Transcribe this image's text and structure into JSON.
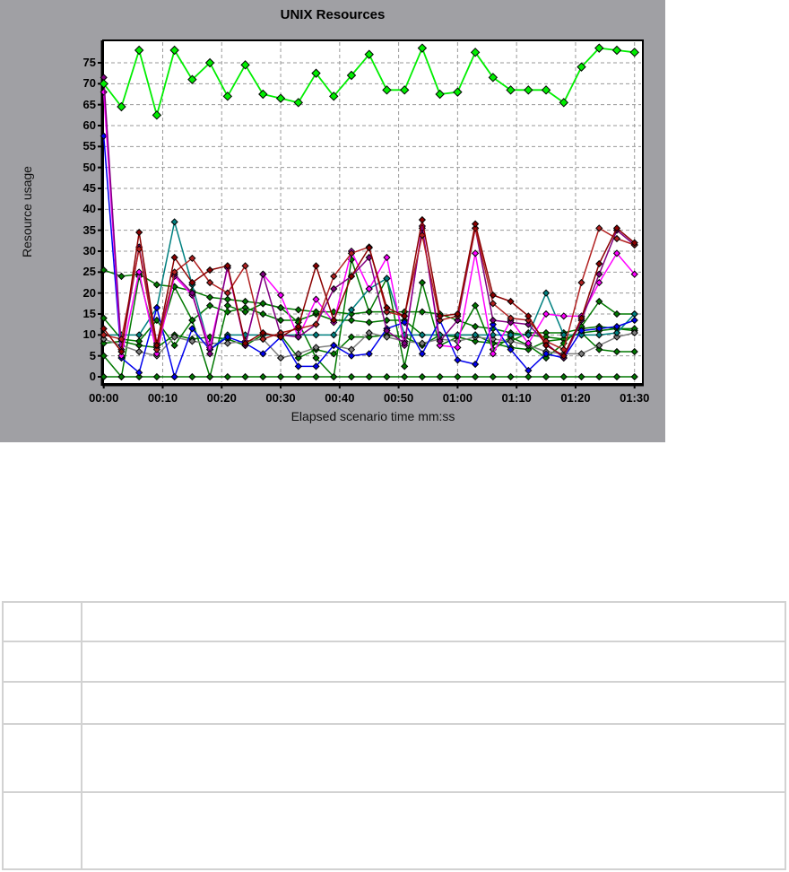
{
  "chart_data": {
    "type": "line",
    "title": "UNIX Resources",
    "xlabel": "Elapsed scenario time mm:ss",
    "ylabel": "Resource usage",
    "x_tick_labels": [
      "00:00",
      "00:10",
      "00:20",
      "00:30",
      "00:40",
      "00:50",
      "01:00",
      "01:10",
      "01:20",
      "01:30"
    ],
    "x_tick_seconds": [
      0,
      10,
      20,
      30,
      40,
      50,
      60,
      70,
      80,
      90
    ],
    "y_ticks": [
      0,
      5,
      10,
      15,
      20,
      25,
      30,
      35,
      40,
      45,
      50,
      55,
      60,
      65,
      70,
      75
    ],
    "xlim": [
      0,
      91.5
    ],
    "ylim": [
      0,
      80.4
    ],
    "grid": true,
    "grid_style": "dashed",
    "legend_position": "none",
    "marker": "diamond",
    "x_seconds": [
      0,
      3,
      6,
      9,
      12,
      15,
      18,
      21,
      24,
      27,
      30,
      33,
      36,
      39,
      42,
      45,
      48,
      51,
      54,
      57,
      60,
      63,
      66,
      69,
      72,
      75,
      78,
      81,
      84,
      87,
      90
    ],
    "series": [
      {
        "name": "series-green-zero",
        "color": "#007800",
        "marker_size": 3.4,
        "line_width": 1.5,
        "values": [
          0,
          0,
          0,
          0,
          0,
          0,
          0,
          0,
          0,
          0,
          0,
          0,
          0,
          0,
          0,
          0,
          0,
          0,
          0,
          0,
          0,
          0,
          0,
          0,
          0,
          0,
          0,
          0,
          0,
          0,
          0
        ]
      },
      {
        "name": "series-green-low",
        "color": "#007800",
        "marker_size": 3.4,
        "line_width": 1.5,
        "values": [
          8,
          8.5,
          7.5,
          7,
          10,
          9,
          9.5,
          9,
          7.5,
          10,
          10,
          4.5,
          6.5,
          5.5,
          9.5,
          9.5,
          10,
          9.5,
          7.5,
          10,
          10,
          10,
          8,
          7,
          6.5,
          8.5,
          9,
          10.5,
          6.5,
          6,
          6
        ]
      },
      {
        "name": "series-green-mid",
        "color": "#007800",
        "marker_size": 3.4,
        "line_width": 1.5,
        "values": [
          14,
          9,
          8.5,
          13.5,
          7.5,
          13.5,
          17,
          15.5,
          16.5,
          15,
          13.5,
          13.5,
          15,
          13.5,
          13.5,
          13,
          13.5,
          13.5,
          10,
          10,
          9.5,
          8.5,
          8,
          8.5,
          10.5,
          10.5,
          10.5,
          11.5,
          12,
          11.5,
          11
        ]
      },
      {
        "name": "series-green-decline",
        "color": "#007800",
        "marker_size": 3.4,
        "line_width": 1.5,
        "values": [
          25.5,
          24,
          24.5,
          22,
          21.5,
          20.5,
          19,
          18.5,
          18,
          17.5,
          16.5,
          16,
          15.5,
          15.5,
          15,
          15.5,
          15.5,
          15.5,
          15.5,
          15,
          13.5,
          12,
          11.5,
          10.5,
          10,
          9.5,
          9,
          10.5,
          11,
          11.5,
          11.5
        ]
      },
      {
        "name": "series-green-fluct",
        "color": "#007800",
        "marker_size": 3.4,
        "line_width": 1.5,
        "values": [
          5,
          0,
          24,
          7.5,
          21.5,
          13.5,
          0,
          17,
          15.5,
          17.5,
          16.5,
          13,
          4.5,
          0,
          28,
          15.5,
          23.5,
          2.5,
          22.5,
          7.5,
          9.5,
          17,
          6.5,
          9.5,
          7.5,
          4.5,
          8,
          12,
          18,
          15,
          15
        ]
      },
      {
        "name": "series-gray",
        "color": "#808080",
        "marker_size": 3.4,
        "line_width": 1.5,
        "values": [
          9,
          7.5,
          6,
          5,
          9.5,
          8.5,
          8,
          8,
          8.5,
          9,
          4.5,
          5.5,
          7,
          7.5,
          6.5,
          10.5,
          9.5,
          8.5,
          8,
          9,
          8.5,
          9.5,
          9,
          8.5,
          7.5,
          6,
          5.5,
          5.5,
          7.5,
          9.5,
          10.5
        ]
      },
      {
        "name": "series-teal",
        "color": "#008080",
        "marker_size": 3.4,
        "line_width": 1.5,
        "values": [
          10,
          10,
          10,
          16.5,
          37,
          22,
          6.5,
          10,
          10,
          10,
          10,
          10,
          10,
          10,
          16,
          21,
          23.5,
          10,
          10,
          10,
          10,
          10,
          10,
          10,
          10,
          20,
          10,
          10,
          10,
          10.5,
          15
        ]
      },
      {
        "name": "series-blue",
        "color": "#0000ee",
        "marker_size": 3.4,
        "line_width": 1.5,
        "values": [
          57.5,
          4.5,
          1,
          16.5,
          0,
          11.5,
          6.5,
          9.5,
          8,
          5.5,
          9.5,
          2.5,
          2.5,
          7.5,
          5,
          5.5,
          11.5,
          13,
          5.5,
          13.5,
          4,
          3,
          12.5,
          6.5,
          1.5,
          5.5,
          4.5,
          11,
          11.5,
          12,
          13.5
        ]
      },
      {
        "name": "series-magenta",
        "color": "#ff00ff",
        "marker_size": 3.4,
        "line_width": 1.5,
        "values": [
          68,
          5,
          25,
          5.5,
          24,
          19.5,
          7,
          26,
          7.5,
          24.5,
          19.5,
          9.5,
          18.5,
          13,
          30,
          21,
          28.5,
          7.5,
          36,
          7.5,
          7,
          29.5,
          5.5,
          13.5,
          8,
          15,
          14.5,
          14.5,
          22.5,
          29.5,
          24.5
        ]
      },
      {
        "name": "series-purple",
        "color": "#800080",
        "marker_size": 3.4,
        "line_width": 1.5,
        "values": [
          71.5,
          6.5,
          31,
          8,
          24.5,
          20,
          5.5,
          26.5,
          7.5,
          24.5,
          10,
          9.5,
          12.5,
          21,
          24,
          28.5,
          11,
          8,
          35.5,
          8.5,
          13.5,
          35.5,
          13.5,
          13,
          12.5,
          8,
          4.5,
          13.5,
          24.5,
          35,
          31.5
        ]
      },
      {
        "name": "series-firebrick",
        "color": "#b22222",
        "marker_size": 3.4,
        "line_width": 1.5,
        "values": [
          10,
          9,
          30.5,
          6.5,
          25,
          28.3,
          22.5,
          20,
          26.5,
          9,
          10.5,
          11.5,
          12.5,
          24,
          29.5,
          31,
          15.5,
          14.5,
          33.8,
          13.5,
          14.5,
          35.5,
          17.5,
          14,
          13.5,
          8.5,
          6.5,
          22.5,
          35.5,
          33,
          31.5
        ]
      },
      {
        "name": "series-maroon",
        "color": "#8b0000",
        "marker_size": 3.4,
        "line_width": 1.5,
        "values": [
          11.5,
          6,
          34.5,
          7.5,
          28.5,
          22.5,
          25.5,
          26.5,
          8,
          10.5,
          9.5,
          12,
          26.5,
          13.5,
          24,
          30.8,
          16.5,
          14.5,
          37.5,
          14.5,
          15,
          36.5,
          19.5,
          18,
          14.5,
          7.5,
          5,
          14,
          27,
          35.5,
          32
        ]
      },
      {
        "name": "series-lime",
        "color": "#00ee00",
        "marker_size": 4.5,
        "line_width": 1.8,
        "values": [
          70,
          64.5,
          78,
          62.5,
          78,
          71,
          75,
          67,
          74.5,
          67.5,
          66.5,
          65.5,
          72.5,
          67,
          72,
          77,
          68.5,
          68.5,
          78.5,
          67.5,
          68,
          77.5,
          71.5,
          68.5,
          68.5,
          68.5,
          65.5,
          74,
          78.5,
          78,
          77.5
        ]
      }
    ],
    "colors": {
      "panel_background": "#a0a0a4",
      "plot_background": "#ffffff",
      "grid": "#999999",
      "axis": "#000000",
      "table_border": "#d2d2d2"
    }
  },
  "legend_table": {
    "rows": [
      [
        "",
        ""
      ],
      [
        "",
        ""
      ],
      [
        "",
        ""
      ],
      [
        "",
        ""
      ],
      [
        "",
        ""
      ]
    ]
  }
}
